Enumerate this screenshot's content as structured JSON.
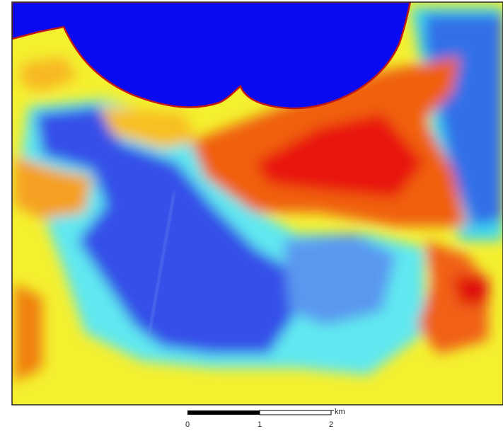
{
  "scale_bar": {
    "labels": [
      "0",
      "1",
      "2"
    ],
    "unit": "km"
  }
}
